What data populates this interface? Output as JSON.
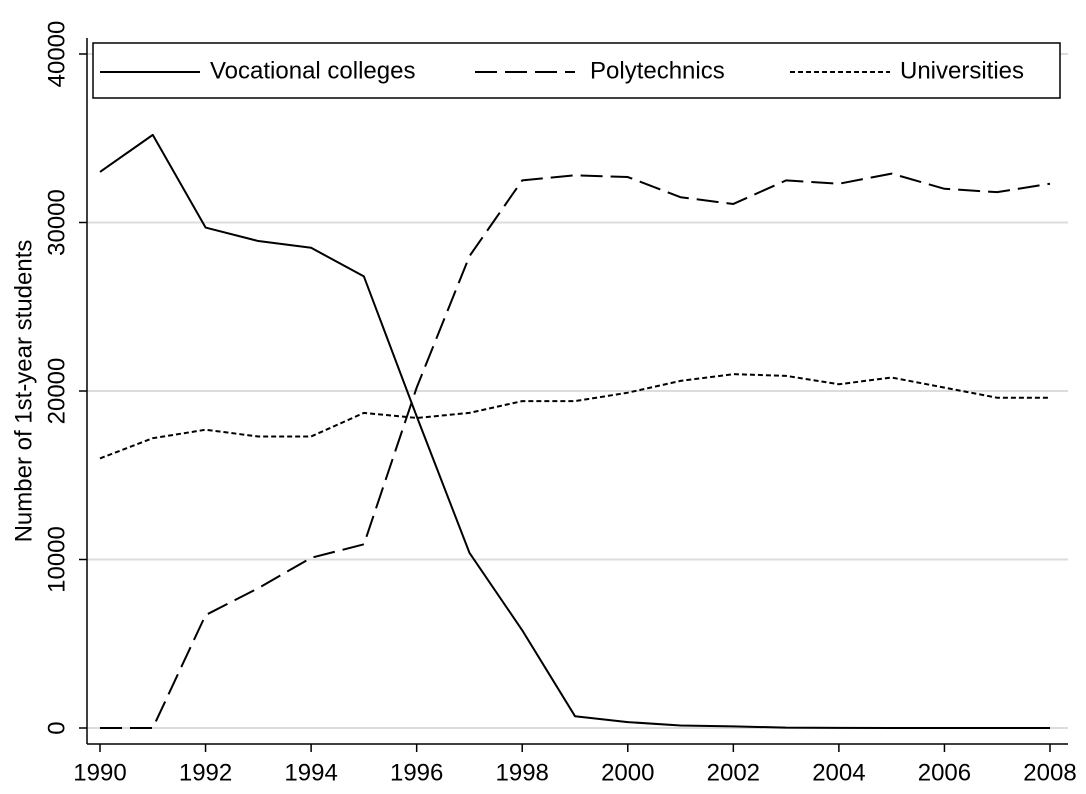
{
  "chart_data": {
    "type": "line",
    "y_label": "Number of 1st-year students",
    "x": [
      1990,
      1991,
      1992,
      1993,
      1994,
      1995,
      1996,
      1997,
      1998,
      1999,
      2000,
      2001,
      2002,
      2003,
      2004,
      2005,
      2006,
      2007,
      2008
    ],
    "series": [
      {
        "name": "Vocational colleges",
        "color": "#000000",
        "dash": "solid",
        "values": [
          33000,
          35200,
          29700,
          28900,
          28500,
          26800,
          18500,
          10400,
          5800,
          700,
          350,
          150,
          100,
          20,
          10,
          0,
          0,
          0,
          0
        ]
      },
      {
        "name": "Polytechnics",
        "color": "#000000",
        "dash": "long-dash",
        "values": [
          0,
          0,
          6700,
          8300,
          10100,
          10900,
          20200,
          28000,
          32500,
          32800,
          32700,
          31500,
          31100,
          32500,
          32300,
          32900,
          32000,
          31800,
          32300
        ]
      },
      {
        "name": "Universities",
        "color": "#000000",
        "dash": "short-dash",
        "values": [
          16000,
          17200,
          17700,
          17300,
          17300,
          18700,
          18400,
          18700,
          19400,
          19400,
          19900,
          20600,
          21000,
          20900,
          20400,
          20800,
          20200,
          19600,
          19600
        ]
      }
    ],
    "xlim": [
      1990,
      2008
    ],
    "xticks": [
      1990,
      1992,
      1994,
      1996,
      1998,
      2000,
      2002,
      2004,
      2006,
      2008
    ],
    "ylim": [
      0,
      40000
    ],
    "yticks": [
      0,
      10000,
      20000,
      30000,
      40000
    ],
    "grid": true,
    "legend": "top"
  }
}
